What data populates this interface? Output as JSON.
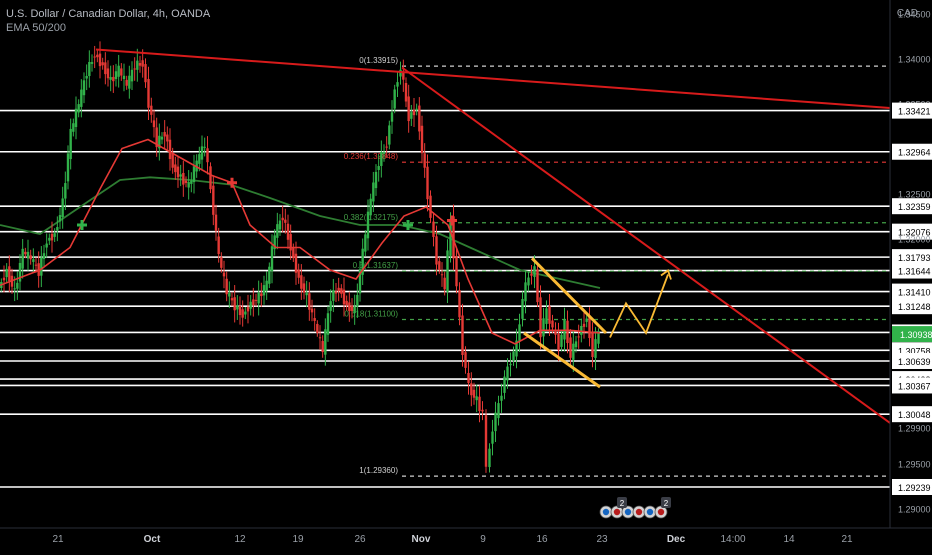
{
  "header": {
    "symbol_title": "U.S. Dollar / Canadian Dollar, 4h, OANDA",
    "indicator": "EMA 50/200",
    "currency": "CAD"
  },
  "colors": {
    "background": "#000000",
    "candle_up": "#31b24a",
    "candle_down": "#e53935",
    "ema50": "#e53935",
    "ema200": "#2e7d32",
    "trendline": "#d81b1b",
    "channel": "#f9b934",
    "level_line": "#ffffff",
    "current_price_bg": "#31b24a"
  },
  "chart_data": {
    "type": "candlestick",
    "x_labels": [
      "21",
      "Oct",
      "12",
      "19",
      "26",
      "Nov",
      "9",
      "16",
      "23",
      "Dec",
      "14:00",
      "14",
      "21"
    ],
    "y_ticks": [
      "1.34500",
      "1.34000",
      "1.33500",
      "1.33421",
      "1.32964",
      "1.32500",
      "1.32359",
      "1.32076",
      "1.32000",
      "1.31793",
      "1.31644",
      "1.31410",
      "1.31248",
      "1.30956",
      "1.30938",
      "1.30758",
      "1.30639",
      "1.30438",
      "1.30367",
      "1.30048",
      "1.29900",
      "1.29500",
      "1.29239",
      "1.29000"
    ],
    "current_price": "1.30938",
    "horizontal_levels": [
      1.33421,
      1.32964,
      1.32359,
      1.32076,
      1.31793,
      1.31644,
      1.3141,
      1.31248,
      1.30956,
      1.30758,
      1.30639,
      1.30438,
      1.30367,
      1.30048,
      1.29239
    ],
    "fibonacci": [
      {
        "label": "0(1.33915)",
        "price": 1.33915
      },
      {
        "label": "0.236(1.32848)",
        "price": 1.32848
      },
      {
        "label": "0.382(1.32175)",
        "price": 1.32175
      },
      {
        "label": "0.5(1.31637)",
        "price": 1.31637
      },
      {
        "label": "0.618(1.31100)",
        "price": 1.311
      },
      {
        "label": "1(1.29360)",
        "price": 1.2936
      }
    ],
    "price_path": [
      [
        0,
        1.3145
      ],
      [
        8,
        1.3165
      ],
      [
        16,
        1.314
      ],
      [
        24,
        1.3185
      ],
      [
        32,
        1.3178
      ],
      [
        40,
        1.3163
      ],
      [
        48,
        1.3198
      ],
      [
        56,
        1.3205
      ],
      [
        64,
        1.324
      ],
      [
        72,
        1.3318
      ],
      [
        80,
        1.335
      ],
      [
        88,
        1.3385
      ],
      [
        96,
        1.3405
      ],
      [
        104,
        1.3392
      ],
      [
        112,
        1.3375
      ],
      [
        120,
        1.3388
      ],
      [
        128,
        1.337
      ],
      [
        136,
        1.3392
      ],
      [
        144,
        1.3395
      ],
      [
        150,
        1.335
      ],
      [
        158,
        1.3305
      ],
      [
        166,
        1.3318
      ],
      [
        174,
        1.328
      ],
      [
        182,
        1.3268
      ],
      [
        190,
        1.3258
      ],
      [
        198,
        1.3285
      ],
      [
        206,
        1.3305
      ],
      [
        212,
        1.3255
      ],
      [
        220,
        1.318
      ],
      [
        228,
        1.314
      ],
      [
        236,
        1.3125
      ],
      [
        244,
        1.3115
      ],
      [
        252,
        1.3128
      ],
      [
        260,
        1.3135
      ],
      [
        268,
        1.315
      ],
      [
        276,
        1.3205
      ],
      [
        284,
        1.3225
      ],
      [
        292,
        1.319
      ],
      [
        300,
        1.3155
      ],
      [
        308,
        1.3135
      ],
      [
        316,
        1.3105
      ],
      [
        324,
        1.3075
      ],
      [
        332,
        1.3135
      ],
      [
        340,
        1.3145
      ],
      [
        348,
        1.3125
      ],
      [
        356,
        1.312
      ],
      [
        364,
        1.3185
      ],
      [
        372,
        1.3245
      ],
      [
        380,
        1.3285
      ],
      [
        388,
        1.3305
      ],
      [
        396,
        1.3365
      ],
      [
        402,
        1.339
      ],
      [
        410,
        1.3335
      ],
      [
        418,
        1.3345
      ],
      [
        426,
        1.3275
      ],
      [
        432,
        1.3222
      ],
      [
        438,
        1.3175
      ],
      [
        446,
        1.3145
      ],
      [
        452,
        1.322
      ],
      [
        458,
        1.3145
      ],
      [
        464,
        1.3075
      ],
      [
        470,
        1.3035
      ],
      [
        478,
        1.302
      ],
      [
        484,
        1.3005
      ],
      [
        488,
        1.2945
      ],
      [
        494,
        1.299
      ],
      [
        500,
        1.3015
      ],
      [
        506,
        1.3045
      ],
      [
        512,
        1.3065
      ],
      [
        518,
        1.3082
      ],
      [
        524,
        1.3135
      ],
      [
        530,
        1.3158
      ],
      [
        536,
        1.3165
      ],
      [
        542,
        1.3095
      ],
      [
        548,
        1.312
      ],
      [
        554,
        1.31
      ],
      [
        560,
        1.308
      ],
      [
        566,
        1.3105
      ],
      [
        572,
        1.307
      ],
      [
        580,
        1.3095
      ],
      [
        588,
        1.3112
      ],
      [
        594,
        1.3072
      ],
      [
        600,
        1.3095
      ]
    ],
    "ema50": [
      [
        0,
        1.3148
      ],
      [
        40,
        1.3165
      ],
      [
        70,
        1.319
      ],
      [
        100,
        1.3255
      ],
      [
        122,
        1.33
      ],
      [
        148,
        1.331
      ],
      [
        180,
        1.329
      ],
      [
        212,
        1.327
      ],
      [
        232,
        1.3262
      ],
      [
        250,
        1.3215
      ],
      [
        276,
        1.319
      ],
      [
        300,
        1.319
      ],
      [
        330,
        1.3165
      ],
      [
        356,
        1.3155
      ],
      [
        382,
        1.3195
      ],
      [
        404,
        1.3225
      ],
      [
        426,
        1.3235
      ],
      [
        448,
        1.3215
      ],
      [
        468,
        1.3155
      ],
      [
        492,
        1.3095
      ],
      [
        515,
        1.3083
      ],
      [
        540,
        1.3098
      ],
      [
        570,
        1.3098
      ],
      [
        600,
        1.3095
      ]
    ],
    "ema200": [
      [
        0,
        1.3215
      ],
      [
        40,
        1.3205
      ],
      [
        80,
        1.3235
      ],
      [
        120,
        1.3265
      ],
      [
        150,
        1.3268
      ],
      [
        190,
        1.3265
      ],
      [
        230,
        1.326
      ],
      [
        270,
        1.3245
      ],
      [
        320,
        1.3225
      ],
      [
        360,
        1.3215
      ],
      [
        400,
        1.3215
      ],
      [
        440,
        1.3205
      ],
      [
        480,
        1.3185
      ],
      [
        520,
        1.3165
      ],
      [
        560,
        1.3155
      ],
      [
        600,
        1.3145
      ]
    ],
    "crosses": [
      {
        "x": 82,
        "price": 1.3215,
        "kind": "golden"
      },
      {
        "x": 232,
        "price": 1.3262,
        "kind": "death"
      },
      {
        "x": 408,
        "price": 1.3215,
        "kind": "golden"
      },
      {
        "x": 452,
        "price": 1.322,
        "kind": "death"
      }
    ],
    "long_trendline": [
      [
        96,
        1.341
      ],
      [
        890,
        1.3345
      ]
    ],
    "descending_trendline": [
      [
        402,
        1.339
      ],
      [
        890,
        1.2995
      ]
    ],
    "channel_upper": [
      [
        532,
        1.3178
      ],
      [
        606,
        1.3095
      ]
    ],
    "channel_lower": [
      [
        524,
        1.3095
      ],
      [
        600,
        1.3035
      ]
    ],
    "projection": [
      [
        610,
        1.309
      ],
      [
        626,
        1.3128
      ],
      [
        646,
        1.3095
      ],
      [
        668,
        1.316
      ]
    ],
    "projection_arrow_target": [
      668,
      1.316
    ],
    "ylim": [
      1.2885,
      1.3465
    ],
    "xlim": [
      0,
      890
    ]
  },
  "event_icons": [
    "flag",
    "flag",
    "flag",
    "flag",
    "flag",
    "flag",
    "flag",
    "flag"
  ],
  "event_counts": [
    "2",
    "2"
  ]
}
